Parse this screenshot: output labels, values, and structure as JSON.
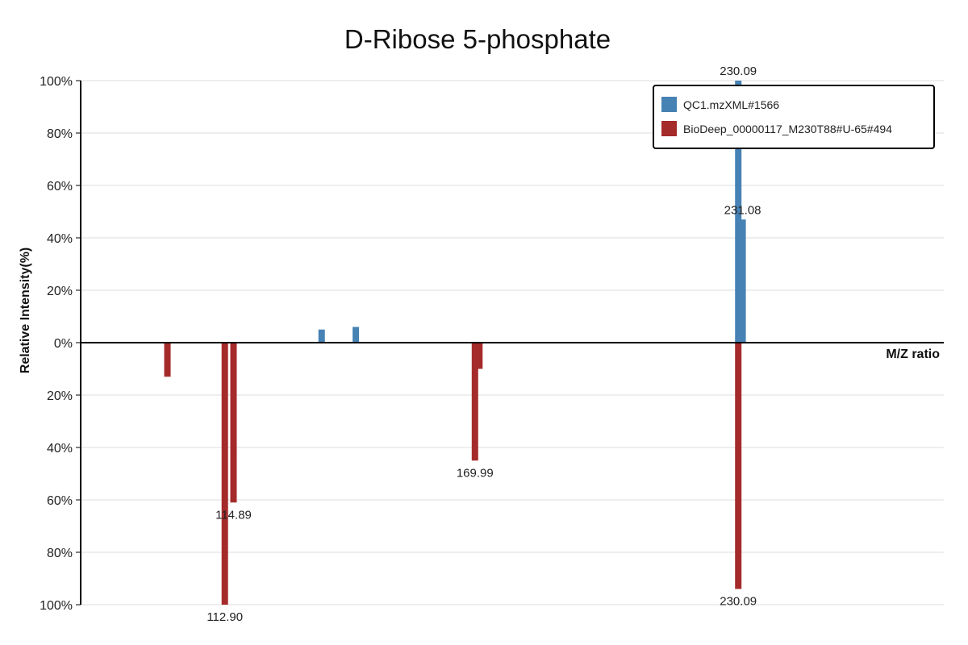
{
  "chart_data": {
    "type": "bar",
    "title": "D-Ribose 5-phosphate",
    "xlabel": "M/Z ratio",
    "ylabel": "Relative Intensity(%)",
    "ylim": [
      -100,
      100
    ],
    "xlim": [
      80,
      277
    ],
    "yticks": [
      "100%",
      "80%",
      "60%",
      "40%",
      "20%",
      "0%",
      "20%",
      "40%",
      "60%",
      "80%",
      "100%"
    ],
    "grid": true,
    "legend_position": "top-right",
    "series": [
      {
        "name": "QC1.mzXML#1566",
        "color": "#4682b4",
        "direction": "up",
        "peaks": [
          {
            "mz": 135.0,
            "intensity": 5,
            "label": ""
          },
          {
            "mz": 142.8,
            "intensity": 6,
            "label": ""
          },
          {
            "mz": 230.09,
            "intensity": 100,
            "label": "230.09"
          },
          {
            "mz": 231.08,
            "intensity": 47,
            "label": "231.08"
          }
        ]
      },
      {
        "name": "BioDeep_00000117_M230T88#U-65#494",
        "color": "#a52a2a",
        "direction": "down",
        "peaks": [
          {
            "mz": 99.8,
            "intensity": 13,
            "label": ""
          },
          {
            "mz": 112.9,
            "intensity": 100,
            "label": "112.90"
          },
          {
            "mz": 114.89,
            "intensity": 61,
            "label": "114.89"
          },
          {
            "mz": 169.99,
            "intensity": 45,
            "label": "169.99"
          },
          {
            "mz": 171.0,
            "intensity": 10,
            "label": ""
          },
          {
            "mz": 230.09,
            "intensity": 94,
            "label": "230.09"
          }
        ]
      }
    ]
  }
}
